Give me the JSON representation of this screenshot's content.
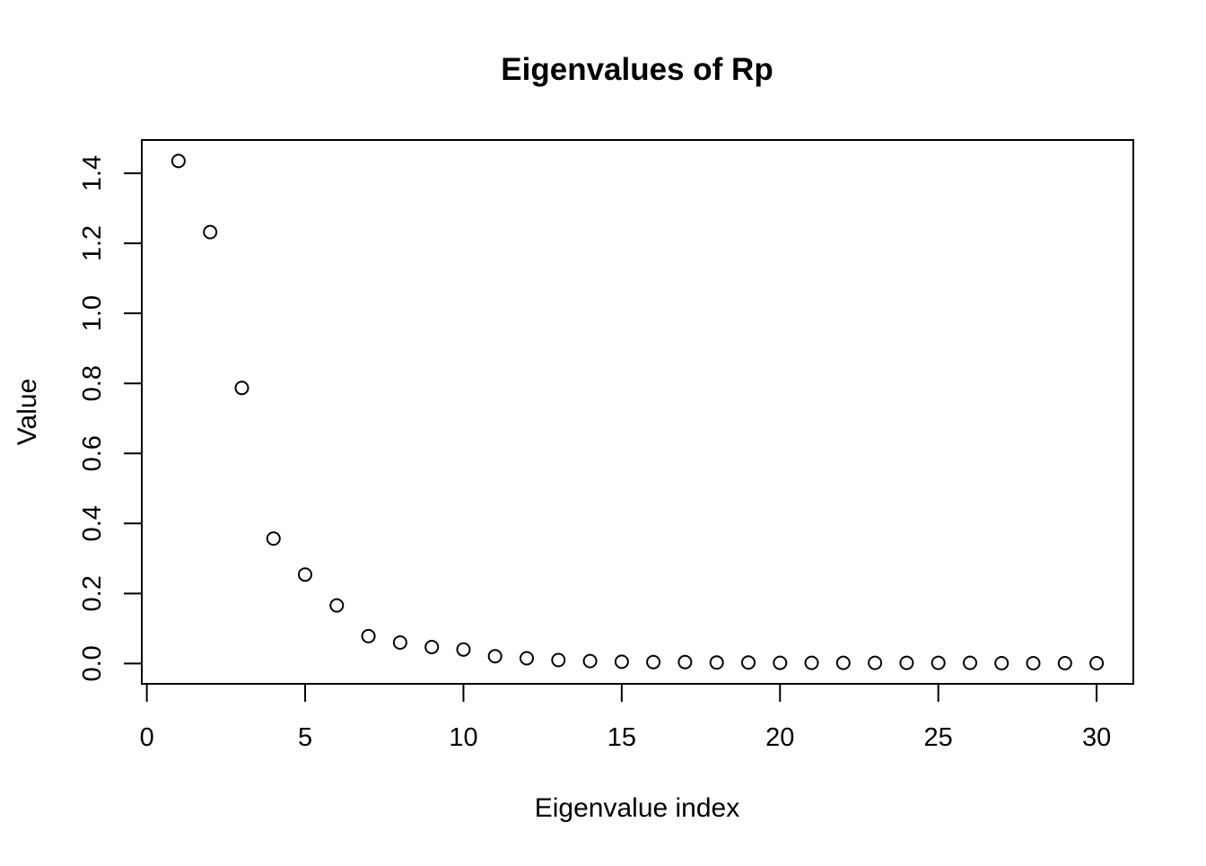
{
  "figure": {
    "background_color": "#ffffff",
    "foreground_color": "#000000"
  },
  "chart_data": {
    "type": "scatter",
    "title": "Eigenvalues of Rp",
    "xlabel": "Eigenvalue index",
    "ylabel": "Value",
    "marker": "open-circle",
    "grid": false,
    "legend": null,
    "x": [
      1,
      2,
      3,
      4,
      5,
      6,
      7,
      8,
      9,
      10,
      11,
      12,
      13,
      14,
      15,
      16,
      17,
      18,
      19,
      20,
      21,
      22,
      23,
      24,
      25,
      26,
      27,
      28,
      29,
      30
    ],
    "y": [
      1.435,
      1.232,
      0.787,
      0.357,
      0.254,
      0.166,
      0.078,
      0.06,
      0.047,
      0.04,
      0.021,
      0.015,
      0.01,
      0.007,
      0.005,
      0.004,
      0.004,
      0.003,
      0.003,
      0.002,
      0.002,
      0.002,
      0.002,
      0.002,
      0.002,
      0.002,
      0.001,
      0.001,
      0.001,
      0.001
    ],
    "xticks": [
      0,
      5,
      10,
      15,
      20,
      25,
      30
    ],
    "ytick_labels": [
      "0.0",
      "0.2",
      "0.4",
      "0.6",
      "0.8",
      "1.0",
      "1.2",
      "1.4"
    ],
    "xlim": [
      -0.16,
      31.16
    ],
    "ylim": [
      -0.058,
      1.495
    ]
  }
}
